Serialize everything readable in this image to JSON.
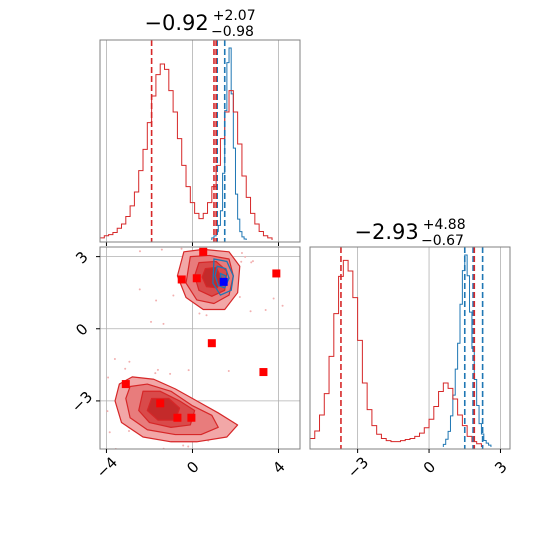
{
  "chart_data": {
    "type": "corner",
    "colors": {
      "chain_a": "#d62728",
      "chain_b": "#1f77b4",
      "grid": "#b0b0b0",
      "marker": "#ff0000",
      "best": "#0000ff"
    },
    "param1": {
      "title": {
        "median": "−0.92",
        "plus": "+2.07",
        "minus": "−0.98"
      },
      "axis_range": [
        -4.3,
        5.0
      ],
      "ticks": [
        -4,
        0,
        4
      ],
      "tick_labels": [
        "−4",
        "0",
        "4"
      ],
      "hist_chain_a": {
        "bin_start": -4.3,
        "bin_width": 0.2,
        "counts": [
          0.2,
          0.4,
          0.5,
          0.7,
          1.1,
          1.5,
          2.2,
          3.2,
          4.5,
          6.5,
          8.5,
          11,
          13.5,
          15.5,
          16.5,
          16,
          14,
          12,
          9.5,
          7,
          5,
          3.5,
          2.5,
          2,
          2.5,
          3.5,
          5,
          7,
          9.5,
          12,
          14,
          12,
          9,
          6,
          4,
          2.5,
          1.5,
          0.8,
          0.4,
          0.2
        ]
      },
      "hist_chain_b": {
        "bin_start": 0.9,
        "bin_width": 0.1,
        "counts": [
          1,
          2,
          4,
          7,
          14,
          32,
          62,
          85,
          92,
          70,
          44,
          22,
          10,
          4,
          1.5,
          0.5
        ]
      },
      "hist_peak": 92,
      "quantiles_chain_a": [
        -1.9,
        1.0,
        1.1
      ],
      "quantiles_chain_b": [
        1.15,
        1.5
      ]
    },
    "param2": {
      "title": {
        "median": "−2.93",
        "plus": "+4.88",
        "minus": "−0.67"
      },
      "axis_range": [
        -5.0,
        3.4
      ],
      "ticks": [
        -3,
        0,
        3
      ],
      "tick_labels": [
        "−3",
        "0",
        "3"
      ],
      "hist_chain_a": {
        "bin_start": -5.0,
        "bin_width": 0.2,
        "counts": [
          0.8,
          1.5,
          3,
          5,
          8.5,
          12.5,
          16,
          17.5,
          16.5,
          14,
          10,
          6,
          3.5,
          2,
          1.2,
          0.8,
          0.6,
          0.5,
          0.5,
          0.6,
          0.7,
          0.8,
          1,
          1.3,
          1.8,
          2.6,
          3.8,
          5.2,
          6,
          5.5,
          4.5,
          3,
          2,
          1,
          0.5,
          0.3
        ]
      },
      "hist_chain_b": {
        "bin_start": 0.6,
        "bin_width": 0.1,
        "counts": [
          1,
          3,
          6,
          12,
          20,
          30,
          40,
          55,
          68,
          74,
          66,
          52,
          38,
          26,
          16,
          9,
          5,
          2.5,
          1.5,
          0.7
        ]
      },
      "hist_peak": 74,
      "quantiles_chain_a": [
        -3.7,
        1.9
      ],
      "quantiles_chain_b": [
        1.5,
        1.85,
        2.25
      ]
    },
    "scatter_2d": {
      "xlim": [
        -4.3,
        5.0
      ],
      "ylim": [
        -5.0,
        3.4
      ],
      "chain_a_modes": [
        {
          "cx": -1.3,
          "cy": -3.2,
          "levels": [
            [
              [
                -3.4,
                -2.3
              ],
              [
                -2.8,
                -2.0
              ],
              [
                -1.8,
                -2.1
              ],
              [
                -0.8,
                -2.5
              ],
              [
                0.2,
                -3.0
              ],
              [
                1.2,
                -3.5
              ],
              [
                2.1,
                -4.0
              ],
              [
                1.6,
                -4.5
              ],
              [
                0.2,
                -4.7
              ],
              [
                -1.0,
                -4.7
              ],
              [
                -2.3,
                -4.5
              ],
              [
                -3.3,
                -3.9
              ],
              [
                -3.6,
                -3.0
              ]
            ],
            [
              [
                -2.9,
                -2.4
              ],
              [
                -2.1,
                -2.3
              ],
              [
                -1.0,
                -2.6
              ],
              [
                0.0,
                -3.2
              ],
              [
                0.9,
                -3.6
              ],
              [
                1.2,
                -4.1
              ],
              [
                0.4,
                -4.4
              ],
              [
                -0.8,
                -4.4
              ],
              [
                -2.1,
                -4.2
              ],
              [
                -2.9,
                -3.7
              ],
              [
                -3.1,
                -2.9
              ]
            ],
            [
              [
                -2.3,
                -2.6
              ],
              [
                -1.5,
                -2.6
              ],
              [
                -0.6,
                -3.0
              ],
              [
                0.1,
                -3.4
              ],
              [
                -0.1,
                -4.0
              ],
              [
                -1.0,
                -4.1
              ],
              [
                -2.0,
                -3.9
              ],
              [
                -2.5,
                -3.4
              ]
            ],
            [
              [
                -1.9,
                -2.9
              ],
              [
                -1.1,
                -2.9
              ],
              [
                -0.6,
                -3.3
              ],
              [
                -0.8,
                -3.8
              ],
              [
                -1.6,
                -3.8
              ],
              [
                -2.1,
                -3.4
              ]
            ]
          ]
        },
        {
          "cx": 1.0,
          "cy": 2.2,
          "levels": [
            [
              [
                -0.4,
                3.2
              ],
              [
                0.5,
                3.3
              ],
              [
                1.7,
                3.2
              ],
              [
                2.2,
                2.6
              ],
              [
                2.1,
                1.5
              ],
              [
                1.5,
                0.8
              ],
              [
                0.5,
                0.8
              ],
              [
                -0.3,
                1.3
              ],
              [
                -0.7,
                2.2
              ]
            ],
            [
              [
                -0.1,
                3.0
              ],
              [
                0.8,
                3.05
              ],
              [
                1.7,
                2.9
              ],
              [
                1.9,
                2.2
              ],
              [
                1.7,
                1.4
              ],
              [
                1.0,
                1.05
              ],
              [
                0.2,
                1.2
              ],
              [
                -0.3,
                1.9
              ]
            ],
            [
              [
                0.3,
                2.75
              ],
              [
                1.1,
                2.8
              ],
              [
                1.6,
                2.4
              ],
              [
                1.5,
                1.6
              ],
              [
                0.9,
                1.35
              ],
              [
                0.3,
                1.6
              ],
              [
                0.1,
                2.2
              ]
            ],
            [
              [
                0.6,
                2.5
              ],
              [
                1.1,
                2.55
              ],
              [
                1.35,
                2.1
              ],
              [
                1.15,
                1.7
              ],
              [
                0.65,
                1.75
              ],
              [
                0.45,
                2.15
              ]
            ]
          ]
        }
      ],
      "chain_b_contours": [
        [
          [
            1.0,
            2.9
          ],
          [
            1.6,
            2.8
          ],
          [
            1.9,
            2.2
          ],
          [
            1.8,
            1.6
          ],
          [
            1.3,
            1.4
          ],
          [
            0.95,
            1.9
          ]
        ],
        [
          [
            1.15,
            2.6
          ],
          [
            1.55,
            2.5
          ],
          [
            1.7,
            2.1
          ],
          [
            1.5,
            1.7
          ],
          [
            1.2,
            1.8
          ],
          [
            1.05,
            2.2
          ]
        ],
        [
          [
            1.3,
            2.3
          ],
          [
            1.55,
            2.2
          ],
          [
            1.5,
            1.95
          ],
          [
            1.3,
            1.95
          ]
        ]
      ],
      "markers": [
        [
          0.5,
          3.2
        ],
        [
          -0.5,
          2.05
        ],
        [
          0.2,
          2.1
        ],
        [
          3.9,
          2.3
        ],
        [
          0.9,
          -0.6
        ],
        [
          3.3,
          -1.8
        ],
        [
          -3.1,
          -2.3
        ],
        [
          -1.5,
          -3.1
        ],
        [
          -0.7,
          -3.7
        ],
        [
          -0.05,
          -3.7
        ]
      ],
      "best_fit": [
        1.45,
        1.95
      ]
    }
  }
}
